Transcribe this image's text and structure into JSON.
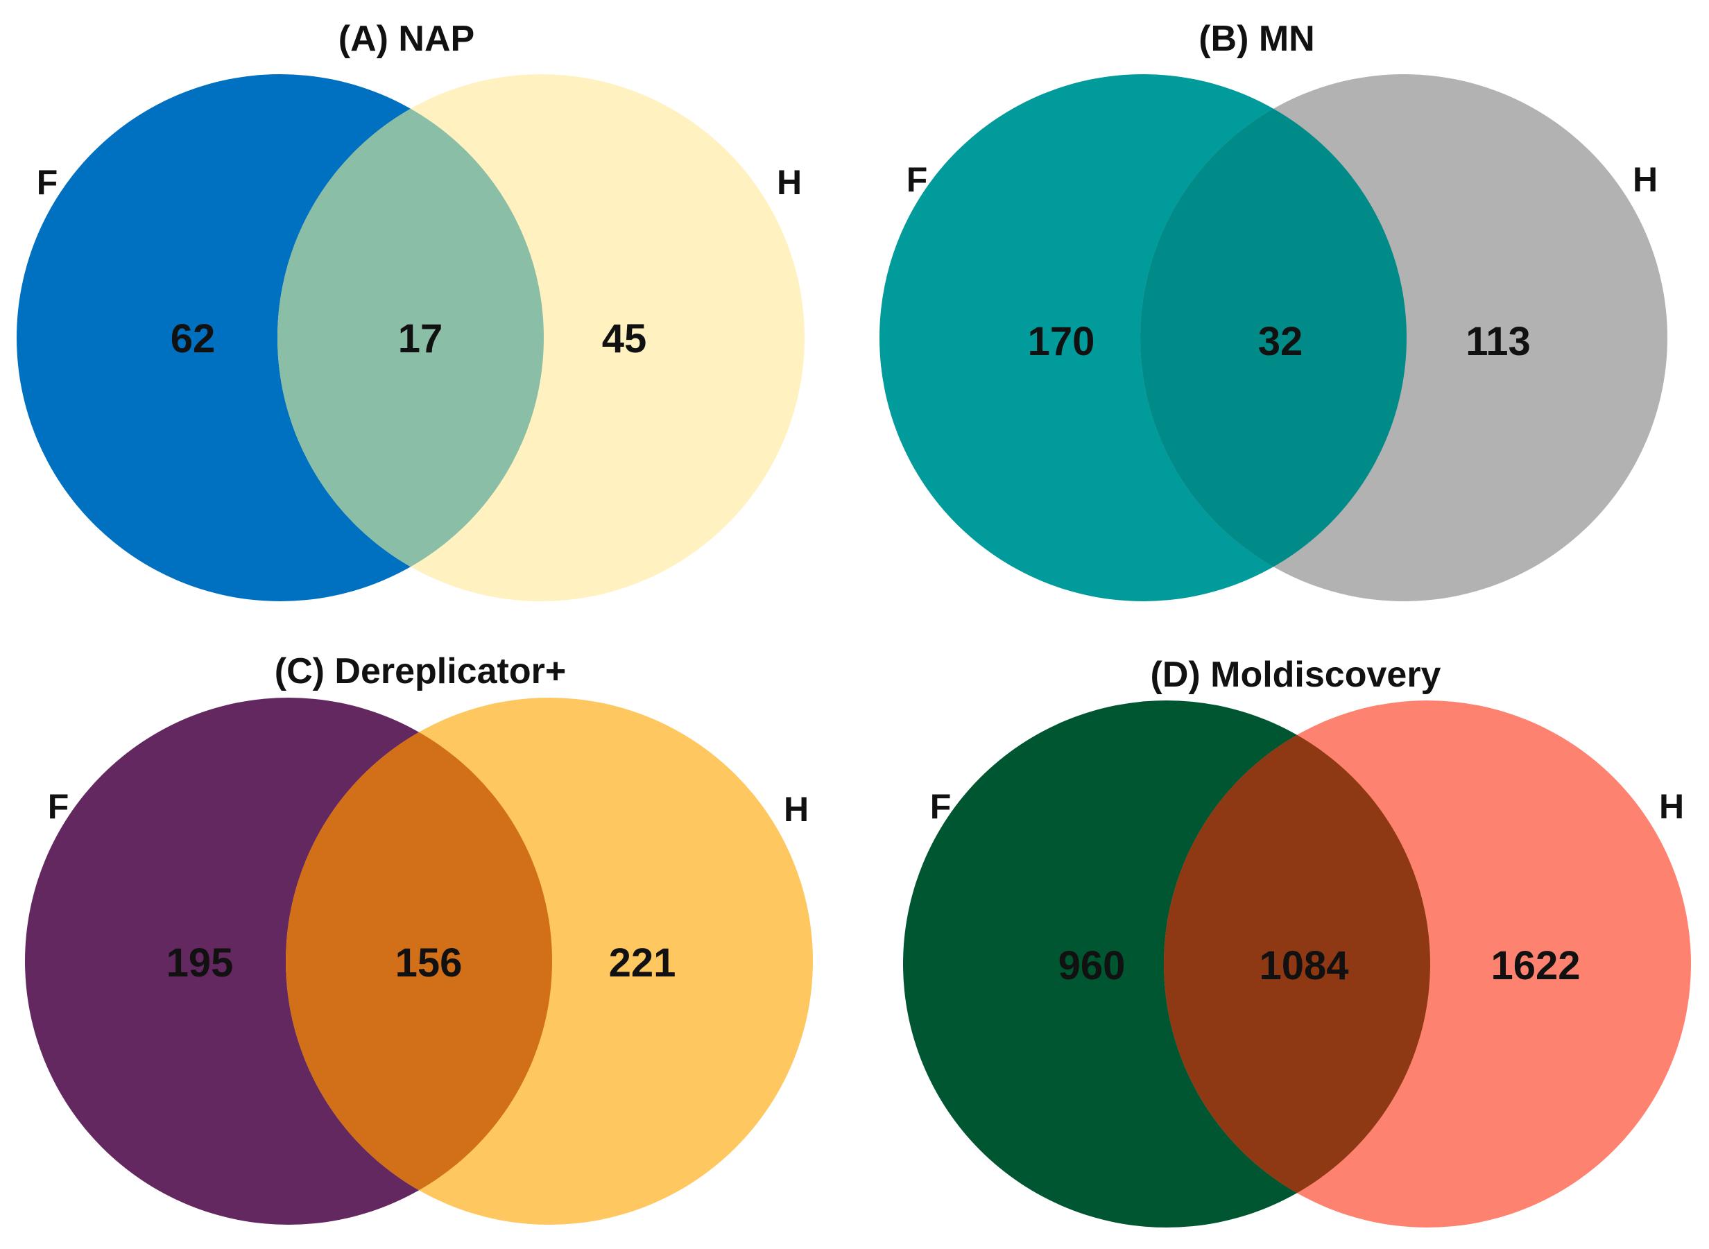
{
  "panels": [
    {
      "title": "(A) NAP",
      "left_label": "F",
      "right_label": "H",
      "left_only": "62",
      "intersection": "17",
      "right_only": "45",
      "colors": {
        "left": "#0070c0",
        "right": "#fff2c0",
        "overlap": "#8bbea6"
      }
    },
    {
      "title": "(B) MN",
      "left_label": "F",
      "right_label": "H",
      "left_only": "170",
      "intersection": "32",
      "right_only": "113",
      "colors": {
        "left": "#009b9a",
        "right": "#b2b2b2",
        "overlap": "#008b89"
      }
    },
    {
      "title": "(C) Dereplicator+",
      "left_label": "F",
      "right_label": "H",
      "left_only": "195",
      "intersection": "156",
      "right_only": "221",
      "colors": {
        "left": "#642860",
        "right": "#fec760",
        "overlap": "#d2701a"
      }
    },
    {
      "title": "(D) Moldiscovery",
      "left_label": "F",
      "right_label": "H",
      "left_only": "960",
      "intersection": "1084",
      "right_only": "1622",
      "colors": {
        "left": "#005630",
        "right": "#fd8370",
        "overlap": "#8e3913"
      }
    }
  ]
}
